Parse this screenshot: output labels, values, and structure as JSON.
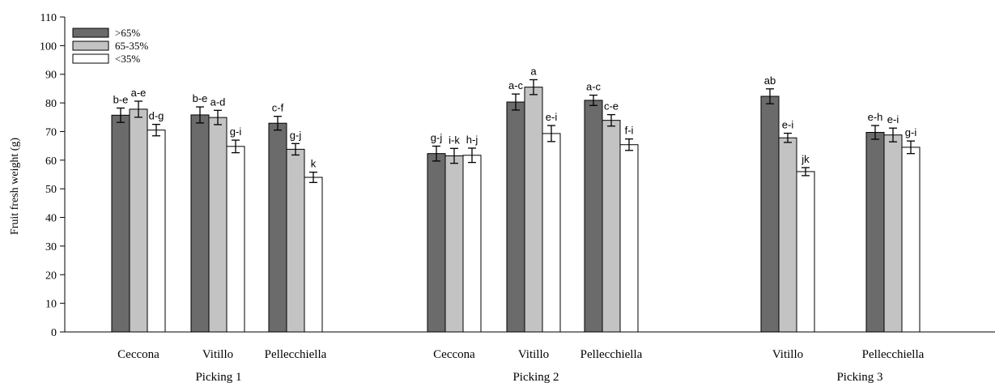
{
  "chart_data": {
    "type": "bar",
    "ylabel": "Fruit fresh weight (g)",
    "ylim": [
      0,
      110
    ],
    "yticks": [
      0,
      10,
      20,
      30,
      40,
      50,
      60,
      70,
      80,
      90,
      100,
      110
    ],
    "grid": false,
    "legend_position": "top-left",
    "series": [
      {
        "name": ">65%",
        "color": "#6b6b6b"
      },
      {
        "name": "65-35%",
        "color": "#c3c3c3"
      },
      {
        "name": "<35%",
        "color": "#ffffff"
      }
    ],
    "groups": [
      {
        "label": "Picking 1",
        "cultivars": [
          {
            "name": "Ceccona",
            "values": [
              75.7,
              77.8,
              70.5
            ],
            "errors": [
              2.5,
              2.8,
              2.0
            ],
            "letters": [
              "b-e",
              "a-e",
              "d-g"
            ]
          },
          {
            "name": "Vitillo",
            "values": [
              75.8,
              74.9,
              64.8
            ],
            "errors": [
              2.8,
              2.5,
              2.2
            ],
            "letters": [
              "b-e",
              "a-d",
              "g-i"
            ]
          },
          {
            "name": "Pellecchiella",
            "values": [
              72.9,
              63.8,
              54.0
            ],
            "errors": [
              2.4,
              2.0,
              1.8
            ],
            "letters": [
              "c-f",
              "g-j",
              "k"
            ]
          }
        ]
      },
      {
        "label": "Picking 2",
        "cultivars": [
          {
            "name": "Ceccona",
            "values": [
              62.3,
              61.5,
              61.7
            ],
            "errors": [
              2.6,
              2.6,
              2.5
            ],
            "letters": [
              "g-j",
              "i-k",
              "h-j"
            ]
          },
          {
            "name": "Vitillo",
            "values": [
              80.3,
              85.5,
              69.3
            ],
            "errors": [
              2.8,
              2.6,
              2.8
            ],
            "letters": [
              "a-c",
              "a",
              "e-i"
            ]
          },
          {
            "name": "Pellecchiella",
            "values": [
              80.9,
              73.9,
              65.4
            ],
            "errors": [
              1.8,
              2.0,
              2.0
            ],
            "letters": [
              "a-c",
              "c-e",
              "f-i"
            ]
          }
        ]
      },
      {
        "label": "Picking 3",
        "cultivars": [
          {
            "name": "Vitillo",
            "values": [
              82.3,
              67.8,
              56.0
            ],
            "errors": [
              2.6,
              1.6,
              1.4
            ],
            "letters": [
              "ab",
              "e-i",
              "jk"
            ]
          },
          {
            "name": "Pellecchiella",
            "values": [
              69.7,
              68.8,
              64.5
            ],
            "errors": [
              2.4,
              2.4,
              2.2
            ],
            "letters": [
              "e-h",
              "e-i",
              "g-i"
            ]
          }
        ]
      }
    ]
  }
}
